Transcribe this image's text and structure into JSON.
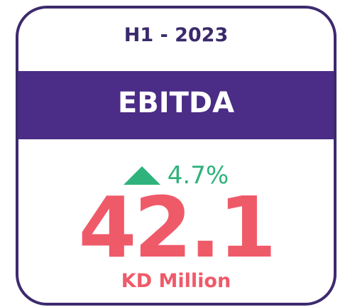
{
  "period": "H1 - 2023",
  "metric": "EBITDA",
  "change": "4.7%",
  "value": "42.1",
  "unit": "KD Million"
}
